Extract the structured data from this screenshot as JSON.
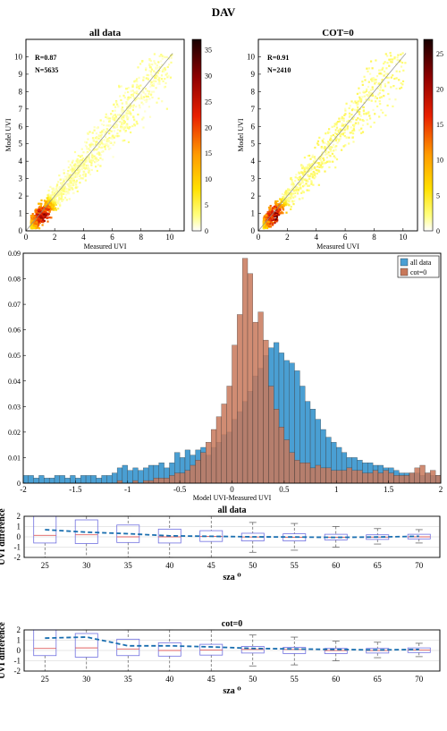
{
  "figure": {
    "title": "DAV"
  },
  "chart_data": [
    {
      "type": "heatmap",
      "title": "all data",
      "xlabel": "Measured UVI",
      "ylabel": "Model UVI",
      "xlim": [
        0,
        11
      ],
      "ylim": [
        0,
        11
      ],
      "xticks": [
        "0",
        "2",
        "4",
        "6",
        "8",
        "10"
      ],
      "yticks": [
        "0",
        "1",
        "2",
        "3",
        "4",
        "5",
        "6",
        "7",
        "8",
        "9",
        "10"
      ],
      "annotations": [
        "R=0.87",
        "N=5635"
      ],
      "colorbar": {
        "ticks": [
          "0",
          "5",
          "10",
          "15",
          "20",
          "25",
          "30",
          "35"
        ],
        "max": 37
      }
    },
    {
      "type": "heatmap",
      "title": "COT=0",
      "xlabel": "Measured UVI",
      "ylabel": "Model UVI",
      "xlim": [
        0,
        11
      ],
      "ylim": [
        0,
        11
      ],
      "xticks": [
        "0",
        "2",
        "4",
        "6",
        "8",
        "10"
      ],
      "yticks": [
        "0",
        "1",
        "2",
        "3",
        "4",
        "5",
        "6",
        "7",
        "8",
        "9",
        "10"
      ],
      "annotations": [
        "R=0.91",
        "N=2410"
      ],
      "colorbar": {
        "ticks": [
          "0",
          "5",
          "10",
          "15",
          "20",
          "25"
        ],
        "max": 27
      }
    },
    {
      "type": "bar",
      "xlabel": "Model UVI-Measured UVI",
      "ylabel": "",
      "xlim": [
        -2,
        2
      ],
      "ylim": [
        0,
        0.09
      ],
      "xticks": [
        "-2",
        "-1.5",
        "-1",
        "-0.5",
        "0",
        "0.5",
        "1",
        "1.5",
        "2"
      ],
      "yticks": [
        "0",
        "0.01",
        "0.02",
        "0.03",
        "0.04",
        "0.05",
        "0.06",
        "0.07",
        "0.08",
        "0.09"
      ],
      "bin_start": -2,
      "bin_width": 0.05,
      "legend": "top-right",
      "series": [
        {
          "name": "all data",
          "color": "#4a9fd3",
          "values": [
            0.003,
            0.003,
            0.002,
            0.003,
            0.002,
            0.002,
            0.003,
            0.003,
            0.002,
            0.003,
            0.002,
            0.003,
            0.003,
            0.003,
            0.002,
            0.003,
            0.003,
            0.004,
            0.006,
            0.007,
            0.005,
            0.006,
            0.005,
            0.006,
            0.007,
            0.007,
            0.008,
            0.006,
            0.008,
            0.012,
            0.01,
            0.013,
            0.011,
            0.013,
            0.014,
            0.011,
            0.014,
            0.016,
            0.019,
            0.02,
            0.025,
            0.028,
            0.032,
            0.036,
            0.042,
            0.045,
            0.05,
            0.053,
            0.055,
            0.051,
            0.048,
            0.047,
            0.044,
            0.038,
            0.032,
            0.029,
            0.025,
            0.021,
            0.018,
            0.016,
            0.014,
            0.012,
            0.01,
            0.01,
            0.009,
            0.008,
            0.008,
            0.007,
            0.007,
            0.006,
            0.006,
            0.005,
            0.004,
            0.004,
            0.004,
            0.004,
            0.003,
            0.004,
            0.003,
            0.003
          ]
        },
        {
          "name": "cot=0",
          "color": "#c8785a",
          "values": [
            0,
            0,
            0,
            0,
            0,
            0,
            0,
            0,
            0,
            0,
            0,
            0,
            0,
            0,
            0,
            0,
            0,
            0,
            0.001,
            0,
            0,
            0.001,
            0,
            0.001,
            0.001,
            0.002,
            0.002,
            0.002,
            0.003,
            0.004,
            0.004,
            0.005,
            0.007,
            0.009,
            0.012,
            0.016,
            0.021,
            0.026,
            0.031,
            0.038,
            0.054,
            0.066,
            0.088,
            0.082,
            0.063,
            0.067,
            0.056,
            0.038,
            0.029,
            0.022,
            0.017,
            0.012,
            0.009,
            0.008,
            0.008,
            0.006,
            0.007,
            0.006,
            0.006,
            0.005,
            0.005,
            0.005,
            0.006,
            0.005,
            0.005,
            0.004,
            0.004,
            0.005,
            0.004,
            0.005,
            0.004,
            0.003,
            0.003,
            0.003,
            0.004,
            0.006,
            0.007,
            0.004,
            0.005,
            0.003
          ]
        }
      ]
    },
    {
      "type": "box",
      "title": "all data",
      "xlabel": "sza ⁰",
      "ylabel": "UVI difference",
      "x": [
        "25",
        "30",
        "35",
        "40",
        "45",
        "50",
        "55",
        "60",
        "65",
        "70"
      ],
      "ylim": [
        -2,
        2
      ],
      "yticks": [
        "-2",
        "-1",
        "0",
        "1",
        "2"
      ],
      "boxes": [
        {
          "q1": -0.6,
          "median": 0.15,
          "q3": 2.0,
          "wlo": -2.0,
          "whi": 2.0
        },
        {
          "q1": -0.65,
          "median": 0.2,
          "q3": 1.65,
          "wlo": -2.0,
          "whi": 2.0
        },
        {
          "q1": -0.55,
          "median": 0.0,
          "q3": 1.15,
          "wlo": -2.0,
          "whi": 2.0
        },
        {
          "q1": -0.6,
          "median": 0.0,
          "q3": 0.75,
          "wlo": -2.0,
          "whi": 2.0
        },
        {
          "q1": -0.45,
          "median": 0.05,
          "q3": 0.6,
          "wlo": -2.0,
          "whi": 2.0
        },
        {
          "q1": -0.4,
          "median": -0.02,
          "q3": 0.35,
          "wlo": -1.5,
          "whi": 1.4
        },
        {
          "q1": -0.4,
          "median": -0.05,
          "q3": 0.3,
          "wlo": -1.3,
          "whi": 1.3
        },
        {
          "q1": -0.3,
          "median": -0.05,
          "q3": 0.25,
          "wlo": -1.0,
          "whi": 1.0
        },
        {
          "q1": -0.25,
          "median": -0.03,
          "q3": 0.2,
          "wlo": -0.7,
          "whi": 0.8
        },
        {
          "q1": -0.2,
          "median": 0.0,
          "q3": 0.25,
          "wlo": -0.6,
          "whi": 0.7
        }
      ],
      "mean_line": [
        0.7,
        0.45,
        0.3,
        0.1,
        0.05,
        0.0,
        -0.02,
        -0.05,
        -0.02,
        0.05
      ],
      "box_color": "#7070e0",
      "median_color": "#e06060",
      "mean_color": "#1a6fb0"
    },
    {
      "type": "box",
      "title": "cot=0",
      "xlabel": "sza ⁰",
      "ylabel": "UVI difference",
      "x": [
        "25",
        "30",
        "35",
        "40",
        "45",
        "50",
        "55",
        "60",
        "65",
        "70"
      ],
      "ylim": [
        -2,
        2
      ],
      "yticks": [
        "-2",
        "-1",
        "0",
        "1",
        "2"
      ],
      "boxes": [
        {
          "q1": -0.5,
          "median": 0.2,
          "q3": 2.0,
          "wlo": -2.0,
          "whi": 2.0
        },
        {
          "q1": -0.65,
          "median": 0.25,
          "q3": 1.65,
          "wlo": -2.0,
          "whi": 2.0
        },
        {
          "q1": -0.5,
          "median": 0.15,
          "q3": 1.1,
          "wlo": -2.0,
          "whi": 2.0
        },
        {
          "q1": -0.55,
          "median": 0.0,
          "q3": 0.75,
          "wlo": -2.0,
          "whi": 2.0
        },
        {
          "q1": -0.45,
          "median": 0.05,
          "q3": 0.6,
          "wlo": -2.0,
          "whi": 2.0
        },
        {
          "q1": -0.25,
          "median": 0.1,
          "q3": 0.4,
          "wlo": -1.5,
          "whi": 1.5
        },
        {
          "q1": -0.3,
          "median": 0.1,
          "q3": 0.3,
          "wlo": -1.4,
          "whi": 1.3
        },
        {
          "q1": -0.3,
          "median": 0.0,
          "q3": 0.2,
          "wlo": -1.0,
          "whi": 0.9
        },
        {
          "q1": -0.25,
          "median": 0.0,
          "q3": 0.2,
          "wlo": -0.7,
          "whi": 0.8
        },
        {
          "q1": -0.2,
          "median": 0.05,
          "q3": 0.25,
          "wlo": -0.6,
          "whi": 0.7
        }
      ],
      "mean_line": [
        1.2,
        1.3,
        0.45,
        0.45,
        0.35,
        0.2,
        0.15,
        0.1,
        0.05,
        0.1
      ],
      "box_color": "#7070e0",
      "median_color": "#e06060",
      "mean_color": "#1a6fb0"
    }
  ]
}
